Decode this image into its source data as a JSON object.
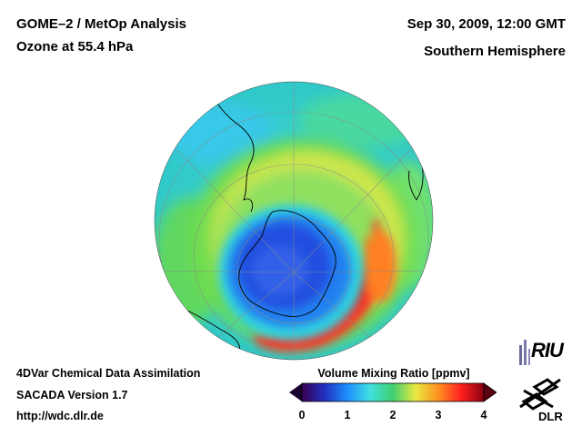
{
  "header": {
    "title_line1": "GOME–2 / MetOp Analysis",
    "title_line2": "Ozone at 55.4 hPa",
    "date": "Sep 30, 2009, 12:00 GMT",
    "region": "Southern Hemisphere"
  },
  "footer": {
    "line1": "4DVar Chemical Data Assimilation",
    "line2": "SACADA Version 1.7",
    "url": "http://wdc.dlr.de"
  },
  "colorbar": {
    "title": "Volume Mixing Ratio [ppmv]",
    "min": 0,
    "max": 4,
    "ticks": [
      "0",
      "1",
      "2",
      "3",
      "4"
    ],
    "colors": [
      "#3a0050",
      "#2030c0",
      "#1e90ff",
      "#40e0e0",
      "#40d070",
      "#e8e840",
      "#ff9020",
      "#ff2020",
      "#8a0010"
    ]
  },
  "logos": {
    "riu": "RIU",
    "dlr": "DLR"
  }
}
